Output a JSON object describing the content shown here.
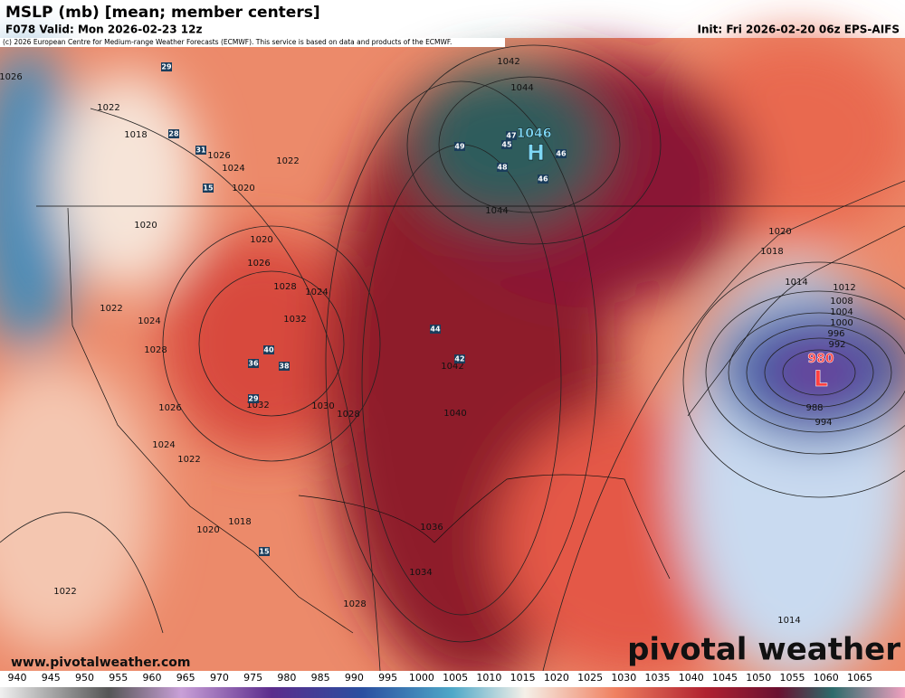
{
  "header": {
    "title": "MSLP (mb) [mean; member centers]",
    "valid": "F078 Valid: Mon 2026-02-23 12z",
    "copyright": "(c) 2026 European Centre for Medium-range Weather Forecasts (ECMWF). This service is based on data and products of the ECMWF.",
    "init": "Init: Fri 2026-02-20 06z EPS-AIFS"
  },
  "map": {
    "centers": [
      {
        "letter": "H",
        "value": 1046
      },
      {
        "letter": "L",
        "value": 980
      }
    ],
    "contour_labels": [
      1042,
      1044,
      1044,
      1040,
      1042,
      1036,
      1034,
      1028,
      1028,
      1030,
      1032,
      1024,
      1022,
      1026,
      1028,
      1024,
      1022,
      1020,
      1020,
      1026,
      1024,
      1028,
      1032,
      1020,
      1024,
      1026,
      1022,
      1022,
      1018,
      1026,
      1020,
      1018,
      1022,
      1020,
      1018,
      1014,
      1012,
      1008,
      1004,
      1000,
      996,
      992,
      988,
      994,
      1014
    ],
    "member_labels": [
      29,
      49,
      44,
      42,
      40,
      36,
      38,
      29,
      47,
      45,
      46,
      48,
      46,
      28,
      31,
      15,
      15
    ]
  },
  "colorbar": {
    "ticks": [
      940,
      945,
      950,
      955,
      960,
      965,
      970,
      975,
      980,
      985,
      990,
      995,
      1000,
      1005,
      1010,
      1015,
      1020,
      1025,
      1030,
      1035,
      1040,
      1045,
      1050,
      1055,
      1060,
      1065
    ]
  },
  "footer": {
    "website": "www.pivotalweather.com",
    "logo": "pivotal weather"
  }
}
